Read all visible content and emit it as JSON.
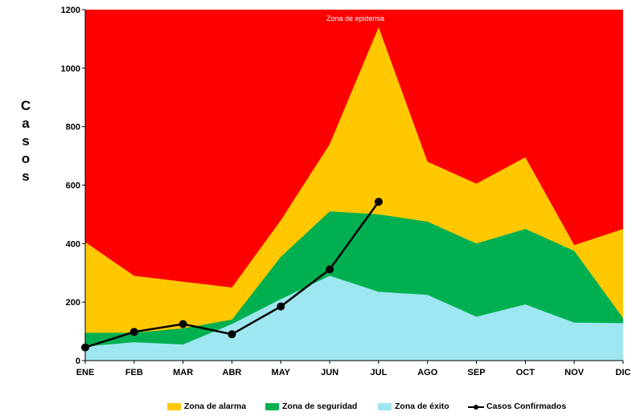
{
  "chart_data": {
    "type": "area",
    "categories": [
      "ENE",
      "FEB",
      "MAR",
      "ABR",
      "MAY",
      "JUN",
      "JUL",
      "AGO",
      "SEP",
      "OCT",
      "NOV",
      "DIC"
    ],
    "ylabel": "Casos",
    "ylim": [
      0,
      1200
    ],
    "yticks": [
      0,
      200,
      400,
      600,
      800,
      1000,
      1200
    ],
    "background_zone": {
      "name": "Zona de epidemia",
      "color": "#ff0000"
    },
    "series": [
      {
        "name": "Zona de alarma",
        "color": "#ffc800",
        "type": "area",
        "values": [
          405,
          290,
          270,
          250,
          480,
          740,
          1140,
          680,
          605,
          695,
          395,
          450
        ]
      },
      {
        "name": "Zona de seguridad",
        "color": "#00b050",
        "type": "area",
        "values": [
          95,
          95,
          110,
          140,
          355,
          510,
          500,
          475,
          400,
          450,
          375,
          145
        ]
      },
      {
        "name": "Zona de éxito",
        "color": "#9fe7f0",
        "type": "area",
        "values": [
          48,
          63,
          55,
          125,
          210,
          290,
          235,
          225,
          150,
          192,
          130,
          128
        ]
      },
      {
        "name": "Casos Confirmados",
        "color": "#000000",
        "type": "line",
        "values": [
          45,
          98,
          125,
          90,
          185,
          312,
          543,
          null,
          null,
          null,
          null,
          null
        ]
      }
    ],
    "legend_position": "bottom"
  }
}
